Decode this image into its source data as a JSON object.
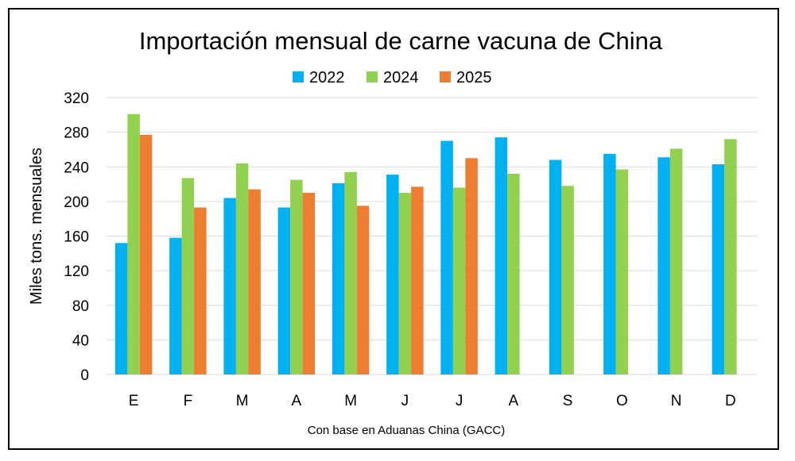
{
  "chart_data": {
    "type": "bar",
    "title": "Importación mensual de carne vacuna de China",
    "xlabel": "",
    "ylabel": "Miles tons. mensuales",
    "source": "Con base en Aduanas China (GACC)",
    "categories": [
      "E",
      "F",
      "M",
      "A",
      "M",
      "J",
      "J",
      "A",
      "S",
      "O",
      "N",
      "D"
    ],
    "yticks": [
      "0",
      "40",
      "80",
      "120",
      "160",
      "200",
      "240",
      "280",
      "320"
    ],
    "ylim": [
      0,
      320
    ],
    "grid": true,
    "legend_position": "top",
    "series": [
      {
        "name": "2022",
        "color": "#00b0f0",
        "values": [
          152,
          158,
          204,
          193,
          221,
          231,
          270,
          274,
          248,
          255,
          251,
          243
        ]
      },
      {
        "name": "2024",
        "color": "#92d050",
        "values": [
          301,
          227,
          244,
          225,
          234,
          210,
          216,
          232,
          218,
          237,
          261,
          272
        ]
      },
      {
        "name": "2025",
        "color": "#ed7d31",
        "values": [
          277,
          193,
          214,
          210,
          195,
          217,
          250,
          null,
          null,
          null,
          null,
          null
        ]
      }
    ]
  }
}
